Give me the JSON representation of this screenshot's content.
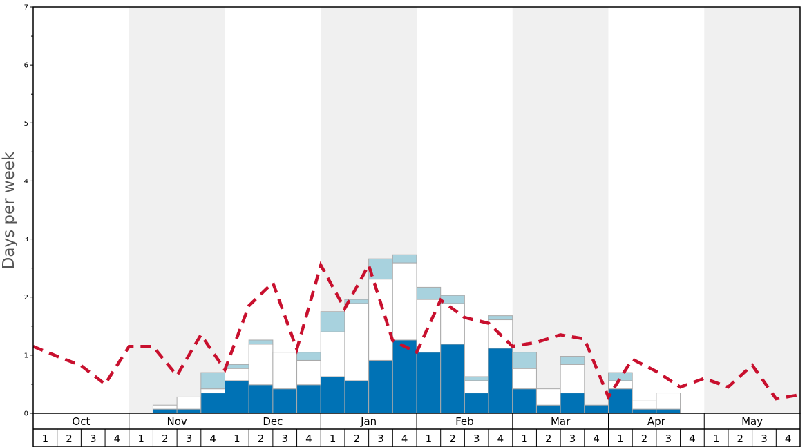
{
  "chart_data": {
    "type": "bar",
    "ylabel": "Days per week",
    "ylim": [
      0,
      7
    ],
    "y_ticks": [
      "0",
      "1",
      "2",
      "3",
      "4",
      "5",
      "6",
      "7"
    ],
    "months": [
      "Oct",
      "Nov",
      "Dec",
      "Jan",
      "Feb",
      "Mar",
      "Apr",
      "May"
    ],
    "weeks": [
      "1",
      "2",
      "3",
      "4"
    ],
    "shaded_months": [
      "Nov",
      "Jan",
      "Mar",
      "May"
    ],
    "colors": {
      "bar_dark": "#0072b5",
      "bar_white": "#ffffff",
      "bar_light": "#a8d2de",
      "bar_border": "#aaaaaa",
      "line": "#c8102e",
      "shade": "#f0f0f0"
    },
    "series": [
      {
        "name": "",
        "color": "#0072b5",
        "values": [
          0,
          0,
          0,
          0,
          0,
          0.07,
          0.07,
          0.35,
          0.56,
          0.49,
          0.42,
          0.49,
          0.63,
          0.56,
          0.91,
          1.26,
          1.05,
          1.19,
          0.35,
          1.12,
          0.42,
          0.14,
          0.35,
          0.14,
          0.42,
          0.07,
          0.07,
          0,
          0,
          0,
          0,
          0
        ]
      },
      {
        "name": "",
        "color": "#ffffff",
        "values": [
          0,
          0,
          0,
          0,
          0,
          0.07,
          0.21,
          0.07,
          0.21,
          0.7,
          0.63,
          0.42,
          0.77,
          1.33,
          1.4,
          1.33,
          0.91,
          0.7,
          0.21,
          0.49,
          0.35,
          0.28,
          0.49,
          0,
          0.14,
          0.14,
          0.28,
          0,
          0,
          0,
          0,
          0
        ]
      },
      {
        "name": "",
        "color": "#a8d2de",
        "values": [
          0,
          0,
          0,
          0,
          0,
          0,
          0,
          0.28,
          0.07,
          0.07,
          0,
          0.14,
          0.35,
          0.07,
          0.35,
          0.14,
          0.21,
          0.14,
          0.07,
          0.07,
          0.28,
          0,
          0.14,
          0,
          0.14,
          0,
          0,
          0,
          0,
          0,
          0,
          0
        ]
      },
      {
        "name": "",
        "type": "line",
        "style": "dashed",
        "color": "#c8102e",
        "values": [
          1.15,
          0.98,
          0.82,
          0.5,
          1.15,
          1.15,
          0.65,
          1.35,
          0.75,
          1.85,
          2.25,
          1.1,
          2.55,
          1.8,
          2.55,
          1.25,
          1.05,
          1.95,
          1.65,
          1.55,
          1.15,
          1.22,
          1.35,
          1.28,
          0.28,
          0.93,
          0.72,
          0.45,
          0.6,
          0.45,
          0.83,
          0.25,
          0.32
        ]
      }
    ],
    "grid": false,
    "legend": "none"
  }
}
